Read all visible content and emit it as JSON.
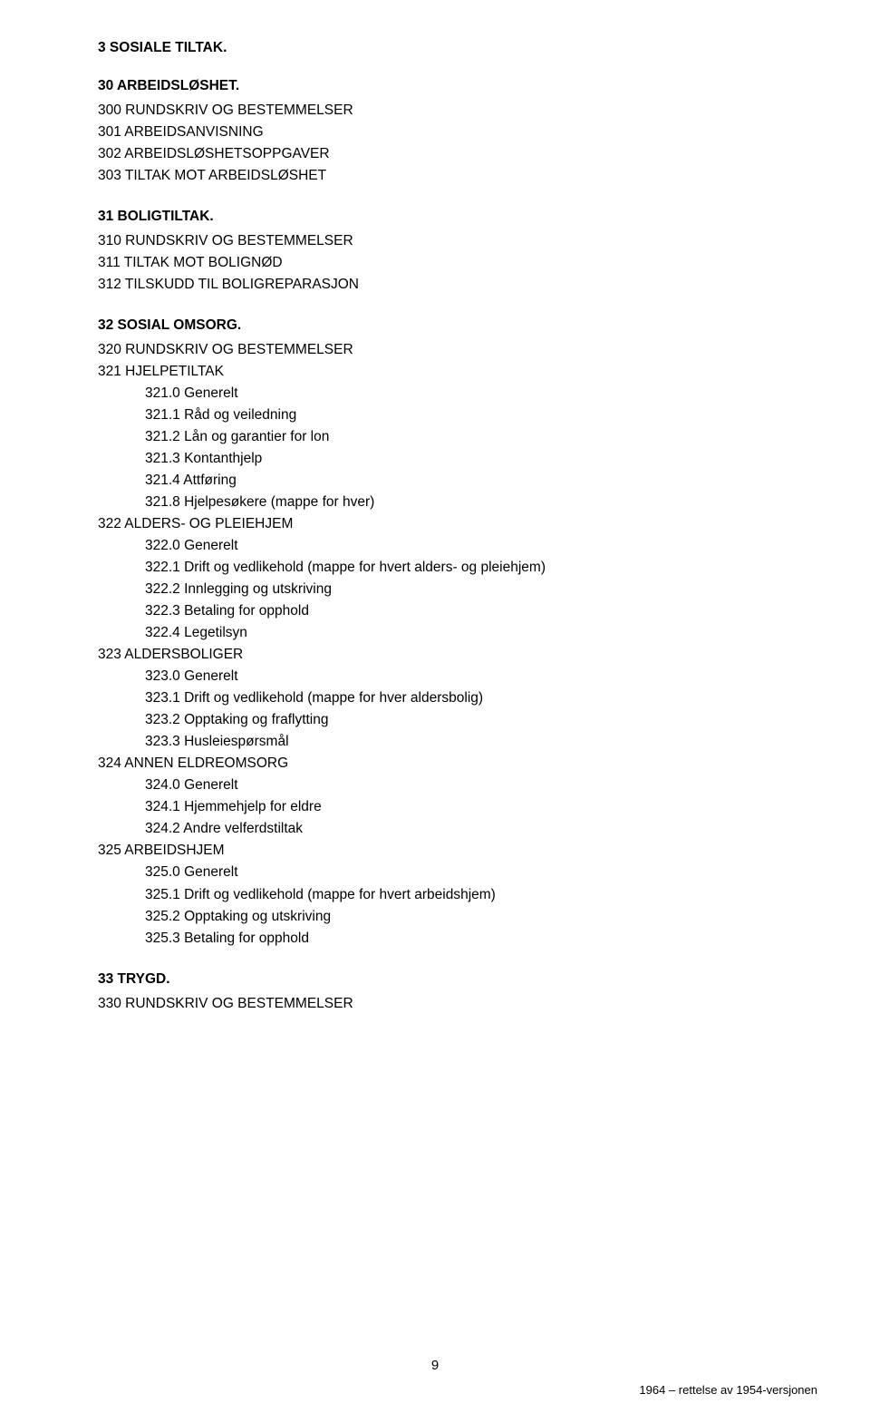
{
  "h1": "3 SOSIALE TILTAK.",
  "s30": {
    "heading": "30 ARBEIDSLØSHET.",
    "lines": [
      "300 RUNDSKRIV OG BESTEMMELSER",
      "301 ARBEIDSANVISNING",
      "302 ARBEIDSLØSHETSOPPGAVER",
      "303 TILTAK MOT ARBEIDSLØSHET"
    ]
  },
  "s31": {
    "heading": "31 BOLIGTILTAK.",
    "lines": [
      "310 RUNDSKRIV OG BESTEMMELSER",
      "311 TILTAK MOT BOLIGNØD",
      "312 TILSKUDD TIL BOLIGREPARASJON"
    ]
  },
  "s32": {
    "heading": "32 SOSIAL OMSORG.",
    "lines_a": [
      "320 RUNDSKRIV OG BESTEMMELSER",
      "321 HJELPETILTAK"
    ],
    "sub_a": [
      "321.0 Generelt",
      "321.1 Råd og veiledning",
      "321.2 Lån og garantier for lon",
      "321.3 Kontanthjelp",
      "321.4 Attføring",
      "321.8 Hjelpesøkere (mappe for hver)"
    ],
    "lines_b": [
      "322 ALDERS- OG PLEIEHJEM"
    ],
    "sub_b": [
      "322.0 Generelt",
      "322.1 Drift og vedlikehold (mappe for hvert alders- og pleiehjem)",
      "322.2 Innlegging og utskriving",
      "322.3 Betaling for opphold",
      "322.4 Legetilsyn"
    ],
    "lines_c": [
      "323 ALDERSBOLIGER"
    ],
    "sub_c": [
      "323.0 Generelt",
      "323.1 Drift og vedlikehold (mappe for hver aldersbolig)",
      "323.2 Opptaking og fraflytting",
      "323.3 Husleiespørsmål"
    ],
    "lines_d": [
      "324 ANNEN ELDREOMSORG"
    ],
    "sub_d": [
      "324.0 Generelt",
      "324.1 Hjemmehjelp for eldre",
      "324.2 Andre velferdstiltak"
    ],
    "lines_e": [
      "325 ARBEIDSHJEM"
    ],
    "sub_e": [
      "325.0 Generelt",
      "325.1 Drift og vedlikehold (mappe for hvert arbeidshjem)",
      "325.2 Opptaking og utskriving",
      "325.3 Betaling for opphold"
    ]
  },
  "s33": {
    "heading": "33 TRYGD.",
    "lines": [
      "330 RUNDSKRIV OG BESTEMMELSER"
    ]
  },
  "pageNumber": "9",
  "footerRight": "1964 – rettelse av 1954-versjonen"
}
